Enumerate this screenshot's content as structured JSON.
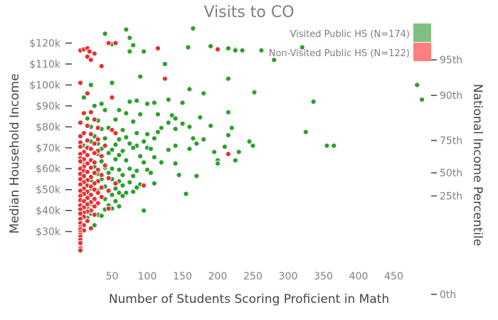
{
  "chart_data": {
    "type": "scatter",
    "title": "Visits to CO",
    "xlabel": "Number of Students Scoring Proficient in Math",
    "ylabel": "Median Household Income",
    "y2label": "National Income Percentile",
    "xlim": [
      0,
      500
    ],
    "ylim": [
      20000,
      127000
    ],
    "x_ticks": [
      {
        "value": 50,
        "label": "50"
      },
      {
        "value": 100,
        "label": "100"
      },
      {
        "value": 150,
        "label": "150"
      },
      {
        "value": 200,
        "label": "200"
      },
      {
        "value": 250,
        "label": "250"
      },
      {
        "value": 300,
        "label": "300"
      },
      {
        "value": 350,
        "label": "350"
      },
      {
        "value": 400,
        "label": "400"
      },
      {
        "value": 450,
        "label": "450"
      }
    ],
    "y_ticks": [
      {
        "value": 30000,
        "label": "$30k"
      },
      {
        "value": 40000,
        "label": "$40k"
      },
      {
        "value": 50000,
        "label": "$50k"
      },
      {
        "value": 60000,
        "label": "$60k"
      },
      {
        "value": 70000,
        "label": "$70k"
      },
      {
        "value": 80000,
        "label": "$80k"
      },
      {
        "value": 90000,
        "label": "$90k"
      },
      {
        "value": 100000,
        "label": "$100k"
      },
      {
        "value": 110000,
        "label": "$110k"
      },
      {
        "value": 120000,
        "label": "$120k"
      }
    ],
    "y2_ticks": [
      {
        "value": 112000,
        "label": "95th"
      },
      {
        "value": 95000,
        "label": "90th"
      },
      {
        "value": 73500,
        "label": "75th"
      },
      {
        "value": 58000,
        "label": "50th"
      },
      {
        "value": 47000,
        "label": "25th"
      },
      {
        "value": 0,
        "label": "0th"
      }
    ],
    "legend_position": "top-right",
    "grid": false,
    "series": [
      {
        "name": "Visited Public HS (N=174)",
        "color": "#2ca02c",
        "legend_color": "#7fbf7f",
        "points": [
          [
            70,
            126500
          ],
          [
            165,
            127000
          ],
          [
            40,
            124500
          ],
          [
            75,
            122500
          ],
          [
            45,
            120000
          ],
          [
            50,
            119500
          ],
          [
            80,
            119000
          ],
          [
            158,
            118000
          ],
          [
            225,
            117000
          ],
          [
            225,
            116500
          ],
          [
            75,
            116000
          ],
          [
            95,
            116000
          ],
          [
            190,
            118500
          ],
          [
            200,
            117000
          ],
          [
            215,
            117500
          ],
          [
            235,
            116500
          ],
          [
            262,
            116500
          ],
          [
            320,
            118000
          ],
          [
            280,
            112000
          ],
          [
            125,
            110000
          ],
          [
            90,
            104000
          ],
          [
            215,
            103000
          ],
          [
            20,
            100000
          ],
          [
            50,
            101000
          ],
          [
            160,
            98000
          ],
          [
            252,
            96500
          ],
          [
            483,
            100000
          ],
          [
            180,
            96000
          ],
          [
            490,
            93000
          ],
          [
            130,
            93000
          ],
          [
            336,
            92000
          ],
          [
            10,
            94000
          ],
          [
            75,
            92000
          ],
          [
            85,
            92500
          ],
          [
            100,
            91000
          ],
          [
            110,
            91500
          ],
          [
            150,
            91500
          ],
          [
            215,
            87000
          ],
          [
            25,
            90000
          ],
          [
            35,
            91000
          ],
          [
            40,
            88000
          ],
          [
            60,
            88000
          ],
          [
            70,
            86500
          ],
          [
            90,
            86000
          ],
          [
            115,
            86000
          ],
          [
            135,
            85500
          ],
          [
            175,
            84500
          ],
          [
            140,
            84000
          ],
          [
            15,
            84000
          ],
          [
            30,
            83000
          ],
          [
            55,
            83500
          ],
          [
            80,
            82500
          ],
          [
            130,
            82000
          ],
          [
            150,
            81500
          ],
          [
            160,
            80000
          ],
          [
            20,
            80000
          ],
          [
            35,
            79000
          ],
          [
            45,
            79500
          ],
          [
            65,
            78500
          ],
          [
            85,
            77000
          ],
          [
            100,
            76500
          ],
          [
            115,
            77500
          ],
          [
            120,
            79500
          ],
          [
            140,
            79000
          ],
          [
            190,
            80500
          ],
          [
            220,
            79500
          ],
          [
            325,
            77500
          ],
          [
            10,
            77000
          ],
          [
            25,
            75500
          ],
          [
            40,
            74500
          ],
          [
            60,
            74000
          ],
          [
            70,
            75000
          ],
          [
            95,
            73000
          ],
          [
            110,
            74500
          ],
          [
            165,
            74500
          ],
          [
            180,
            74000
          ],
          [
            215,
            76000
          ],
          [
            245,
            73000
          ],
          [
            20,
            73000
          ],
          [
            30,
            72000
          ],
          [
            55,
            71500
          ],
          [
            75,
            72000
          ],
          [
            85,
            71000
          ],
          [
            100,
            70000
          ],
          [
            140,
            71000
          ],
          [
            170,
            72000
          ],
          [
            210,
            70500
          ],
          [
            355,
            71000
          ],
          [
            365,
            71000
          ],
          [
            10,
            71000
          ],
          [
            15,
            70500
          ],
          [
            35,
            69500
          ],
          [
            50,
            69000
          ],
          [
            65,
            68500
          ],
          [
            80,
            70000
          ],
          [
            105,
            69500
          ],
          [
            130,
            69000
          ],
          [
            160,
            69500
          ],
          [
            195,
            68000
          ],
          [
            230,
            68000
          ],
          [
            250,
            71000
          ],
          [
            30,
            67000
          ],
          [
            45,
            67500
          ],
          [
            60,
            66500
          ],
          [
            90,
            66000
          ],
          [
            110,
            65500
          ],
          [
            200,
            64000
          ],
          [
            225,
            64000
          ],
          [
            20,
            64000
          ],
          [
            35,
            63500
          ],
          [
            55,
            64500
          ],
          [
            70,
            64000
          ],
          [
            95,
            63000
          ],
          [
            120,
            63000
          ],
          [
            140,
            62500
          ],
          [
            10,
            62000
          ],
          [
            25,
            61000
          ],
          [
            40,
            60500
          ],
          [
            50,
            60000
          ],
          [
            60,
            59500
          ],
          [
            75,
            60000
          ],
          [
            85,
            59000
          ],
          [
            100,
            59500
          ],
          [
            200,
            62500
          ],
          [
            15,
            58500
          ],
          [
            30,
            57500
          ],
          [
            45,
            58000
          ],
          [
            65,
            57000
          ],
          [
            80,
            56500
          ],
          [
            105,
            58000
          ],
          [
            145,
            57000
          ],
          [
            170,
            56500
          ],
          [
            10,
            55500
          ],
          [
            20,
            54500
          ],
          [
            35,
            55000
          ],
          [
            50,
            55000
          ],
          [
            60,
            54000
          ],
          [
            75,
            53500
          ],
          [
            90,
            52500
          ],
          [
            110,
            53000
          ],
          [
            25,
            52500
          ],
          [
            40,
            51500
          ],
          [
            55,
            50500
          ],
          [
            65,
            52000
          ],
          [
            85,
            51000
          ],
          [
            20,
            50500
          ],
          [
            30,
            49500
          ],
          [
            45,
            49000
          ],
          [
            60,
            48500
          ],
          [
            70,
            48500
          ],
          [
            80,
            49000
          ],
          [
            155,
            48000
          ],
          [
            10,
            48500
          ],
          [
            15,
            47500
          ],
          [
            35,
            47000
          ],
          [
            50,
            47500
          ],
          [
            65,
            47000
          ],
          [
            25,
            46000
          ],
          [
            40,
            45500
          ],
          [
            55,
            44500
          ],
          [
            20,
            43000
          ],
          [
            30,
            43500
          ],
          [
            45,
            42500
          ],
          [
            60,
            42000
          ],
          [
            15,
            41500
          ],
          [
            40,
            40500
          ],
          [
            50,
            41000
          ],
          [
            95,
            40000
          ],
          [
            20,
            38500
          ],
          [
            30,
            38000
          ],
          [
            35,
            37500
          ],
          [
            15,
            36500
          ],
          [
            25,
            33000
          ]
        ]
      },
      {
        "name": "Non-Visited Public HS (N=122)",
        "color": "#e8302f",
        "legend_color": "#ff7f7f",
        "points": [
          [
            5,
            116500
          ],
          [
            10,
            117000
          ],
          [
            15,
            117500
          ],
          [
            18,
            116000
          ],
          [
            25,
            115000
          ],
          [
            45,
            120000
          ],
          [
            55,
            120000
          ],
          [
            115,
            117500
          ],
          [
            200,
            117000
          ],
          [
            15,
            113500
          ],
          [
            20,
            112000
          ],
          [
            35,
            109000
          ],
          [
            125,
            103000
          ],
          [
            5,
            101000
          ],
          [
            15,
            96000
          ],
          [
            50,
            94000
          ],
          [
            10,
            86500
          ],
          [
            20,
            87000
          ],
          [
            25,
            83500
          ],
          [
            5,
            82000
          ],
          [
            15,
            80500
          ],
          [
            30,
            79500
          ],
          [
            50,
            78500
          ],
          [
            55,
            77000
          ],
          [
            10,
            77000
          ],
          [
            20,
            76500
          ],
          [
            5,
            75500
          ],
          [
            30,
            74000
          ],
          [
            15,
            73500
          ],
          [
            5,
            72500
          ],
          [
            25,
            72000
          ],
          [
            40,
            71000
          ],
          [
            5,
            70500
          ],
          [
            15,
            70000
          ],
          [
            20,
            69500
          ],
          [
            30,
            68500
          ],
          [
            10,
            68000
          ],
          [
            25,
            67500
          ],
          [
            5,
            67000
          ],
          [
            15,
            66500
          ],
          [
            215,
            67000
          ],
          [
            35,
            66000
          ],
          [
            5,
            65000
          ],
          [
            10,
            64500
          ],
          [
            20,
            64000
          ],
          [
            5,
            63500
          ],
          [
            25,
            63000
          ],
          [
            15,
            62500
          ],
          [
            40,
            61500
          ],
          [
            10,
            61000
          ],
          [
            20,
            60500
          ],
          [
            5,
            60000
          ],
          [
            30,
            59500
          ],
          [
            10,
            59000
          ],
          [
            15,
            58500
          ],
          [
            25,
            58000
          ],
          [
            5,
            57500
          ],
          [
            35,
            57000
          ],
          [
            10,
            56500
          ],
          [
            20,
            56000
          ],
          [
            45,
            55500
          ],
          [
            5,
            55000
          ],
          [
            15,
            54500
          ],
          [
            30,
            54000
          ],
          [
            10,
            53500
          ],
          [
            25,
            53000
          ],
          [
            55,
            53000
          ],
          [
            5,
            52500
          ],
          [
            15,
            52000
          ],
          [
            20,
            51500
          ],
          [
            35,
            51000
          ],
          [
            95,
            52000
          ],
          [
            10,
            50500
          ],
          [
            25,
            50000
          ],
          [
            5,
            49500
          ],
          [
            15,
            49000
          ],
          [
            45,
            49500
          ],
          [
            30,
            48500
          ],
          [
            10,
            48000
          ],
          [
            20,
            47500
          ],
          [
            5,
            47000
          ],
          [
            35,
            46500
          ],
          [
            15,
            46000
          ],
          [
            25,
            45500
          ],
          [
            5,
            45000
          ],
          [
            10,
            44500
          ],
          [
            20,
            44000
          ],
          [
            30,
            43500
          ],
          [
            15,
            43000
          ],
          [
            5,
            42500
          ],
          [
            25,
            42000
          ],
          [
            10,
            41500
          ],
          [
            45,
            41000
          ],
          [
            5,
            40500
          ],
          [
            20,
            40000
          ],
          [
            15,
            39500
          ],
          [
            10,
            39000
          ],
          [
            5,
            38500
          ],
          [
            25,
            38000
          ],
          [
            10,
            37000
          ],
          [
            5,
            36000
          ],
          [
            15,
            35000
          ],
          [
            5,
            34000
          ],
          [
            10,
            33000
          ],
          [
            5,
            32000
          ],
          [
            20,
            31500
          ],
          [
            5,
            31000
          ],
          [
            10,
            30500
          ],
          [
            5,
            29500
          ],
          [
            5,
            28500
          ],
          [
            5,
            27500
          ],
          [
            5,
            26000
          ],
          [
            5,
            24500
          ],
          [
            5,
            22000
          ],
          [
            5,
            21000
          ]
        ]
      }
    ]
  }
}
